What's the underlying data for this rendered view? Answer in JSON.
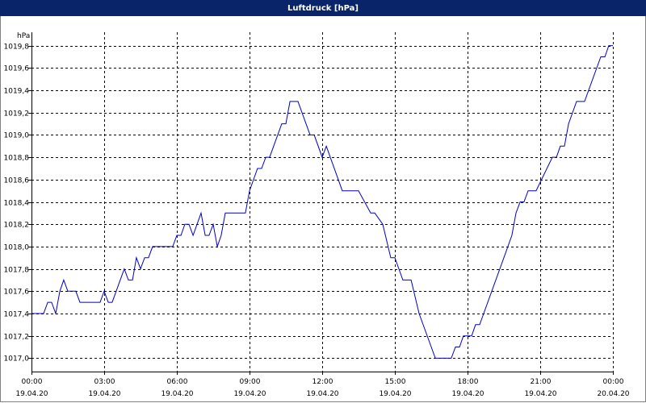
{
  "window": {
    "title": "Luftdruck [hPa]"
  },
  "colors": {
    "titlebar": "#0a246a",
    "line": "#0000cc",
    "grid": "#000000"
  },
  "chart_data": {
    "type": "line",
    "title": "Luftdruck [hPa]",
    "ylabel": "hPa",
    "xlabel": "",
    "grid": true,
    "ylim": [
      1016.88,
      1019.92
    ],
    "xlim": [
      0,
      24
    ],
    "y_ticks": [
      "1017,0",
      "1017,2",
      "1017,4",
      "1017,6",
      "1017,8",
      "1018,0",
      "1018,2",
      "1018,4",
      "1018,6",
      "1018,8",
      "1019,0",
      "1019,2",
      "1019,4",
      "1019,6",
      "1019,8"
    ],
    "y_tick_values": [
      1017.0,
      1017.2,
      1017.4,
      1017.6,
      1017.8,
      1018.0,
      1018.2,
      1018.4,
      1018.6,
      1018.8,
      1019.0,
      1019.2,
      1019.4,
      1019.6,
      1019.8
    ],
    "x_ticks": [
      {
        "h": 0,
        "time": "00:00",
        "date": "19.04.20"
      },
      {
        "h": 3,
        "time": "03:00",
        "date": "19.04.20"
      },
      {
        "h": 6,
        "time": "06:00",
        "date": "19.04.20"
      },
      {
        "h": 9,
        "time": "09:00",
        "date": "19.04.20"
      },
      {
        "h": 12,
        "time": "12:00",
        "date": "19.04.20"
      },
      {
        "h": 15,
        "time": "15:00",
        "date": "19.04.20"
      },
      {
        "h": 18,
        "time": "18:00",
        "date": "19.04.20"
      },
      {
        "h": 21,
        "time": "21:00",
        "date": "19.04.20"
      },
      {
        "h": 24,
        "time": "00:00",
        "date": "20.04.20"
      }
    ],
    "series": [
      {
        "points": [
          [
            0,
            1017.4
          ],
          [
            0.5,
            1017.4
          ],
          [
            0.67,
            1017.5
          ],
          [
            0.83,
            1017.5
          ],
          [
            1.0,
            1017.4
          ],
          [
            1.17,
            1017.6
          ],
          [
            1.33,
            1017.7
          ],
          [
            1.5,
            1017.6
          ],
          [
            1.83,
            1017.6
          ],
          [
            2.0,
            1017.5
          ],
          [
            2.83,
            1017.5
          ],
          [
            3.0,
            1017.6
          ],
          [
            3.17,
            1017.5
          ],
          [
            3.33,
            1017.5
          ],
          [
            3.83,
            1017.8
          ],
          [
            4.0,
            1017.7
          ],
          [
            4.17,
            1017.7
          ],
          [
            4.33,
            1017.9
          ],
          [
            4.5,
            1017.8
          ],
          [
            4.67,
            1017.9
          ],
          [
            4.83,
            1017.9
          ],
          [
            5.0,
            1018.0
          ],
          [
            5.83,
            1018.0
          ],
          [
            6.0,
            1018.1
          ],
          [
            6.17,
            1018.1
          ],
          [
            6.33,
            1018.2
          ],
          [
            6.5,
            1018.2
          ],
          [
            6.67,
            1018.1
          ],
          [
            7.0,
            1018.3
          ],
          [
            7.17,
            1018.1
          ],
          [
            7.33,
            1018.1
          ],
          [
            7.5,
            1018.2
          ],
          [
            7.67,
            1018.0
          ],
          [
            7.83,
            1018.1
          ],
          [
            8.0,
            1018.3
          ],
          [
            8.83,
            1018.3
          ],
          [
            9.0,
            1018.5
          ],
          [
            9.33,
            1018.7
          ],
          [
            9.5,
            1018.7
          ],
          [
            9.67,
            1018.8
          ],
          [
            9.83,
            1018.8
          ],
          [
            10.33,
            1019.1
          ],
          [
            10.5,
            1019.1
          ],
          [
            10.67,
            1019.3
          ],
          [
            10.83,
            1019.3
          ],
          [
            11.0,
            1019.3
          ],
          [
            11.5,
            1019.0
          ],
          [
            11.67,
            1019.0
          ],
          [
            12.0,
            1018.8
          ],
          [
            12.17,
            1018.9
          ],
          [
            12.83,
            1018.5
          ],
          [
            13.5,
            1018.5
          ],
          [
            14.0,
            1018.3
          ],
          [
            14.17,
            1018.3
          ],
          [
            14.5,
            1018.2
          ],
          [
            14.83,
            1017.9
          ],
          [
            15.0,
            1017.9
          ],
          [
            15.33,
            1017.7
          ],
          [
            15.67,
            1017.7
          ],
          [
            16.0,
            1017.4
          ],
          [
            16.67,
            1017.0
          ],
          [
            17.33,
            1017.0
          ],
          [
            17.5,
            1017.1
          ],
          [
            17.67,
            1017.1
          ],
          [
            17.83,
            1017.2
          ],
          [
            18.17,
            1017.2
          ],
          [
            18.33,
            1017.3
          ],
          [
            18.5,
            1017.3
          ],
          [
            19.5,
            1017.9
          ],
          [
            19.83,
            1018.1
          ],
          [
            20.0,
            1018.3
          ],
          [
            20.17,
            1018.4
          ],
          [
            20.33,
            1018.4
          ],
          [
            20.5,
            1018.5
          ],
          [
            20.83,
            1018.5
          ],
          [
            21.5,
            1018.8
          ],
          [
            21.67,
            1018.8
          ],
          [
            21.83,
            1018.9
          ],
          [
            22.0,
            1018.9
          ],
          [
            22.17,
            1019.1
          ],
          [
            22.5,
            1019.3
          ],
          [
            22.83,
            1019.3
          ],
          [
            23.5,
            1019.7
          ],
          [
            23.67,
            1019.7
          ],
          [
            23.83,
            1019.8
          ],
          [
            24.0,
            1019.8
          ]
        ]
      }
    ]
  }
}
